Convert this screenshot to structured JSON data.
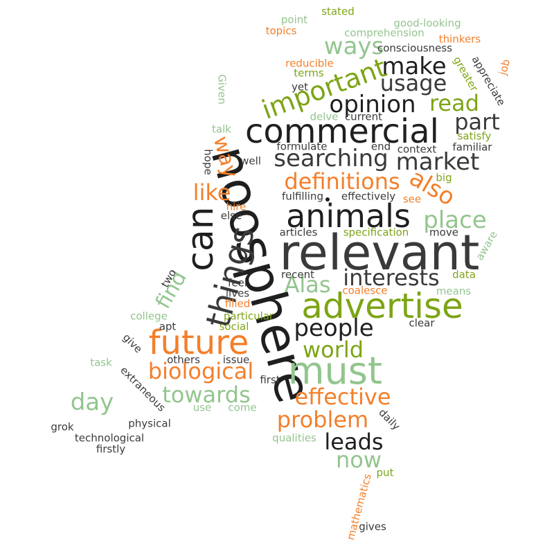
{
  "palette": {
    "dark": "#3a3a3a",
    "black": "#1f1f1f",
    "orange": "#f47f2a",
    "olive": "#7da416",
    "light_green": "#93c58e"
  },
  "words": [
    {
      "text": "noosphere"
    },
    {
      "text": "relevant"
    },
    {
      "text": "commercial"
    },
    {
      "text": "advertise"
    },
    {
      "text": "animals"
    },
    {
      "text": "must"
    },
    {
      "text": "future"
    },
    {
      "text": "can"
    },
    {
      "text": "things"
    },
    {
      "text": "important"
    },
    {
      "text": "opinion"
    },
    {
      "text": "searching"
    },
    {
      "text": "market"
    },
    {
      "text": "make"
    },
    {
      "text": "usage"
    },
    {
      "text": "ways"
    },
    {
      "text": "part"
    },
    {
      "text": "read"
    },
    {
      "text": "definitions"
    },
    {
      "text": "also"
    },
    {
      "text": "place"
    },
    {
      "text": "interests"
    },
    {
      "text": "Alas"
    },
    {
      "text": "people"
    },
    {
      "text": "world"
    },
    {
      "text": "biological"
    },
    {
      "text": "towards"
    },
    {
      "text": "effective"
    },
    {
      "text": "problem"
    },
    {
      "text": "leads"
    },
    {
      "text": "now"
    },
    {
      "text": "day"
    },
    {
      "text": "find"
    },
    {
      "text": "like"
    },
    {
      "text": "way"
    },
    {
      "text": "consciousness"
    },
    {
      "text": "comprehension"
    },
    {
      "text": "good-looking"
    },
    {
      "text": "stated"
    },
    {
      "text": "point"
    },
    {
      "text": "topics"
    },
    {
      "text": "thinkers"
    },
    {
      "text": "reducible"
    },
    {
      "text": "terms"
    },
    {
      "text": "yet"
    },
    {
      "text": "appreciate"
    },
    {
      "text": "job"
    },
    {
      "text": "greater"
    },
    {
      "text": "Given"
    },
    {
      "text": "delve"
    },
    {
      "text": "current"
    },
    {
      "text": "satisfy"
    },
    {
      "text": "talk"
    },
    {
      "text": "formulate"
    },
    {
      "text": "end"
    },
    {
      "text": "context"
    },
    {
      "text": "familiar"
    },
    {
      "text": "hope"
    },
    {
      "text": "well"
    },
    {
      "text": "big"
    },
    {
      "text": "fulfilling"
    },
    {
      "text": "effectively"
    },
    {
      "text": "see"
    },
    {
      "text": "hire"
    },
    {
      "text": "else"
    },
    {
      "text": "articles"
    },
    {
      "text": "specification"
    },
    {
      "text": "move"
    },
    {
      "text": "aware"
    },
    {
      "text": "recent"
    },
    {
      "text": "data"
    },
    {
      "text": "two"
    },
    {
      "text": "feel"
    },
    {
      "text": "lives"
    },
    {
      "text": "coalesce"
    },
    {
      "text": "means"
    },
    {
      "text": "filled"
    },
    {
      "text": "college"
    },
    {
      "text": "particular"
    },
    {
      "text": "apt"
    },
    {
      "text": "social"
    },
    {
      "text": "clear"
    },
    {
      "text": "give"
    },
    {
      "text": "task"
    },
    {
      "text": "others"
    },
    {
      "text": "issue"
    },
    {
      "text": "extraneous"
    },
    {
      "text": "first"
    },
    {
      "text": "use"
    },
    {
      "text": "come"
    },
    {
      "text": "daily"
    },
    {
      "text": "grok"
    },
    {
      "text": "physical"
    },
    {
      "text": "technological"
    },
    {
      "text": "firstly"
    },
    {
      "text": "qualities"
    },
    {
      "text": "put"
    },
    {
      "text": "mathematics"
    },
    {
      "text": "gives"
    }
  ]
}
